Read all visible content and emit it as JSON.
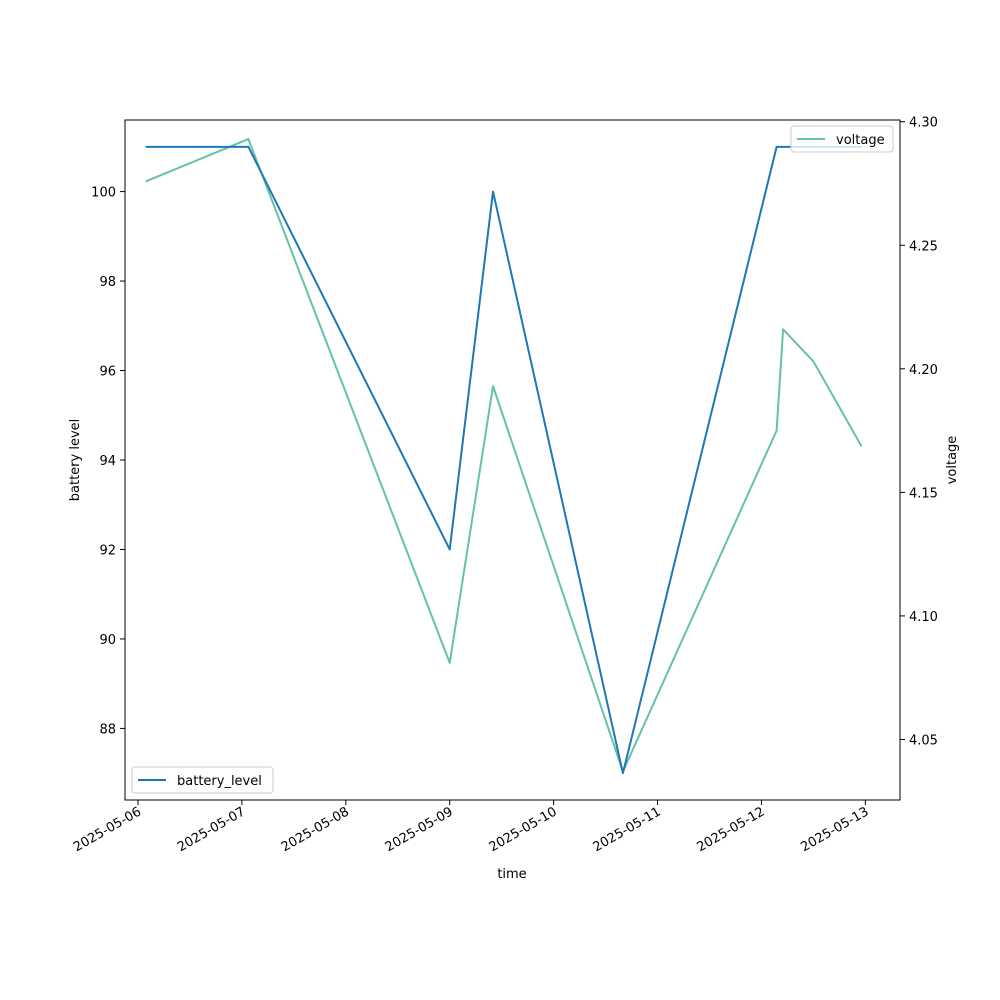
{
  "chart_data": {
    "type": "line",
    "xlabel": "time",
    "ylabel_left": "battery level",
    "ylabel_right": "voltage",
    "x_ticks": [
      "2025-05-06",
      "2025-05-07",
      "2025-05-08",
      "2025-05-09",
      "2025-05-10",
      "2025-05-11",
      "2025-05-12",
      "2025-05-13"
    ],
    "y_left_ticks": [
      88,
      90,
      92,
      94,
      96,
      98,
      100
    ],
    "y_right_ticks": [
      "4.05",
      "4.10",
      "4.15",
      "4.20",
      "4.25",
      "4.30"
    ],
    "xlim": [
      "2025-05-05T21:00",
      "2025-05-13T08:00"
    ],
    "ylim_left": [
      86.4,
      101.6
    ],
    "ylim_right": [
      4.0255,
      4.3007
    ],
    "series": [
      {
        "name": "battery_level",
        "axis": "left",
        "color": "#1f77b4",
        "x": [
          "2025-05-06T02:00",
          "2025-05-07T01:30",
          "2025-05-09T00:00",
          "2025-05-09T10:00",
          "2025-05-10T16:00",
          "2025-05-12T03:30",
          "2025-05-12T23:00"
        ],
        "y": [
          101,
          101,
          92,
          100,
          87,
          101,
          101
        ]
      },
      {
        "name": "voltage",
        "axis": "right",
        "color": "#66c2a5",
        "x": [
          "2025-05-06T02:00",
          "2025-05-07T01:30",
          "2025-05-09T00:00",
          "2025-05-09T10:00",
          "2025-05-10T16:00",
          "2025-05-12T03:30",
          "2025-05-12T05:00",
          "2025-05-12T12:00",
          "2025-05-12T23:00"
        ],
        "y": [
          4.276,
          4.293,
          4.081,
          4.193,
          4.037,
          4.175,
          4.216,
          4.203,
          4.169
        ]
      }
    ],
    "legends": [
      {
        "entry": "battery_level",
        "placement": "lower-left"
      },
      {
        "entry": "voltage",
        "placement": "upper-right"
      }
    ]
  }
}
